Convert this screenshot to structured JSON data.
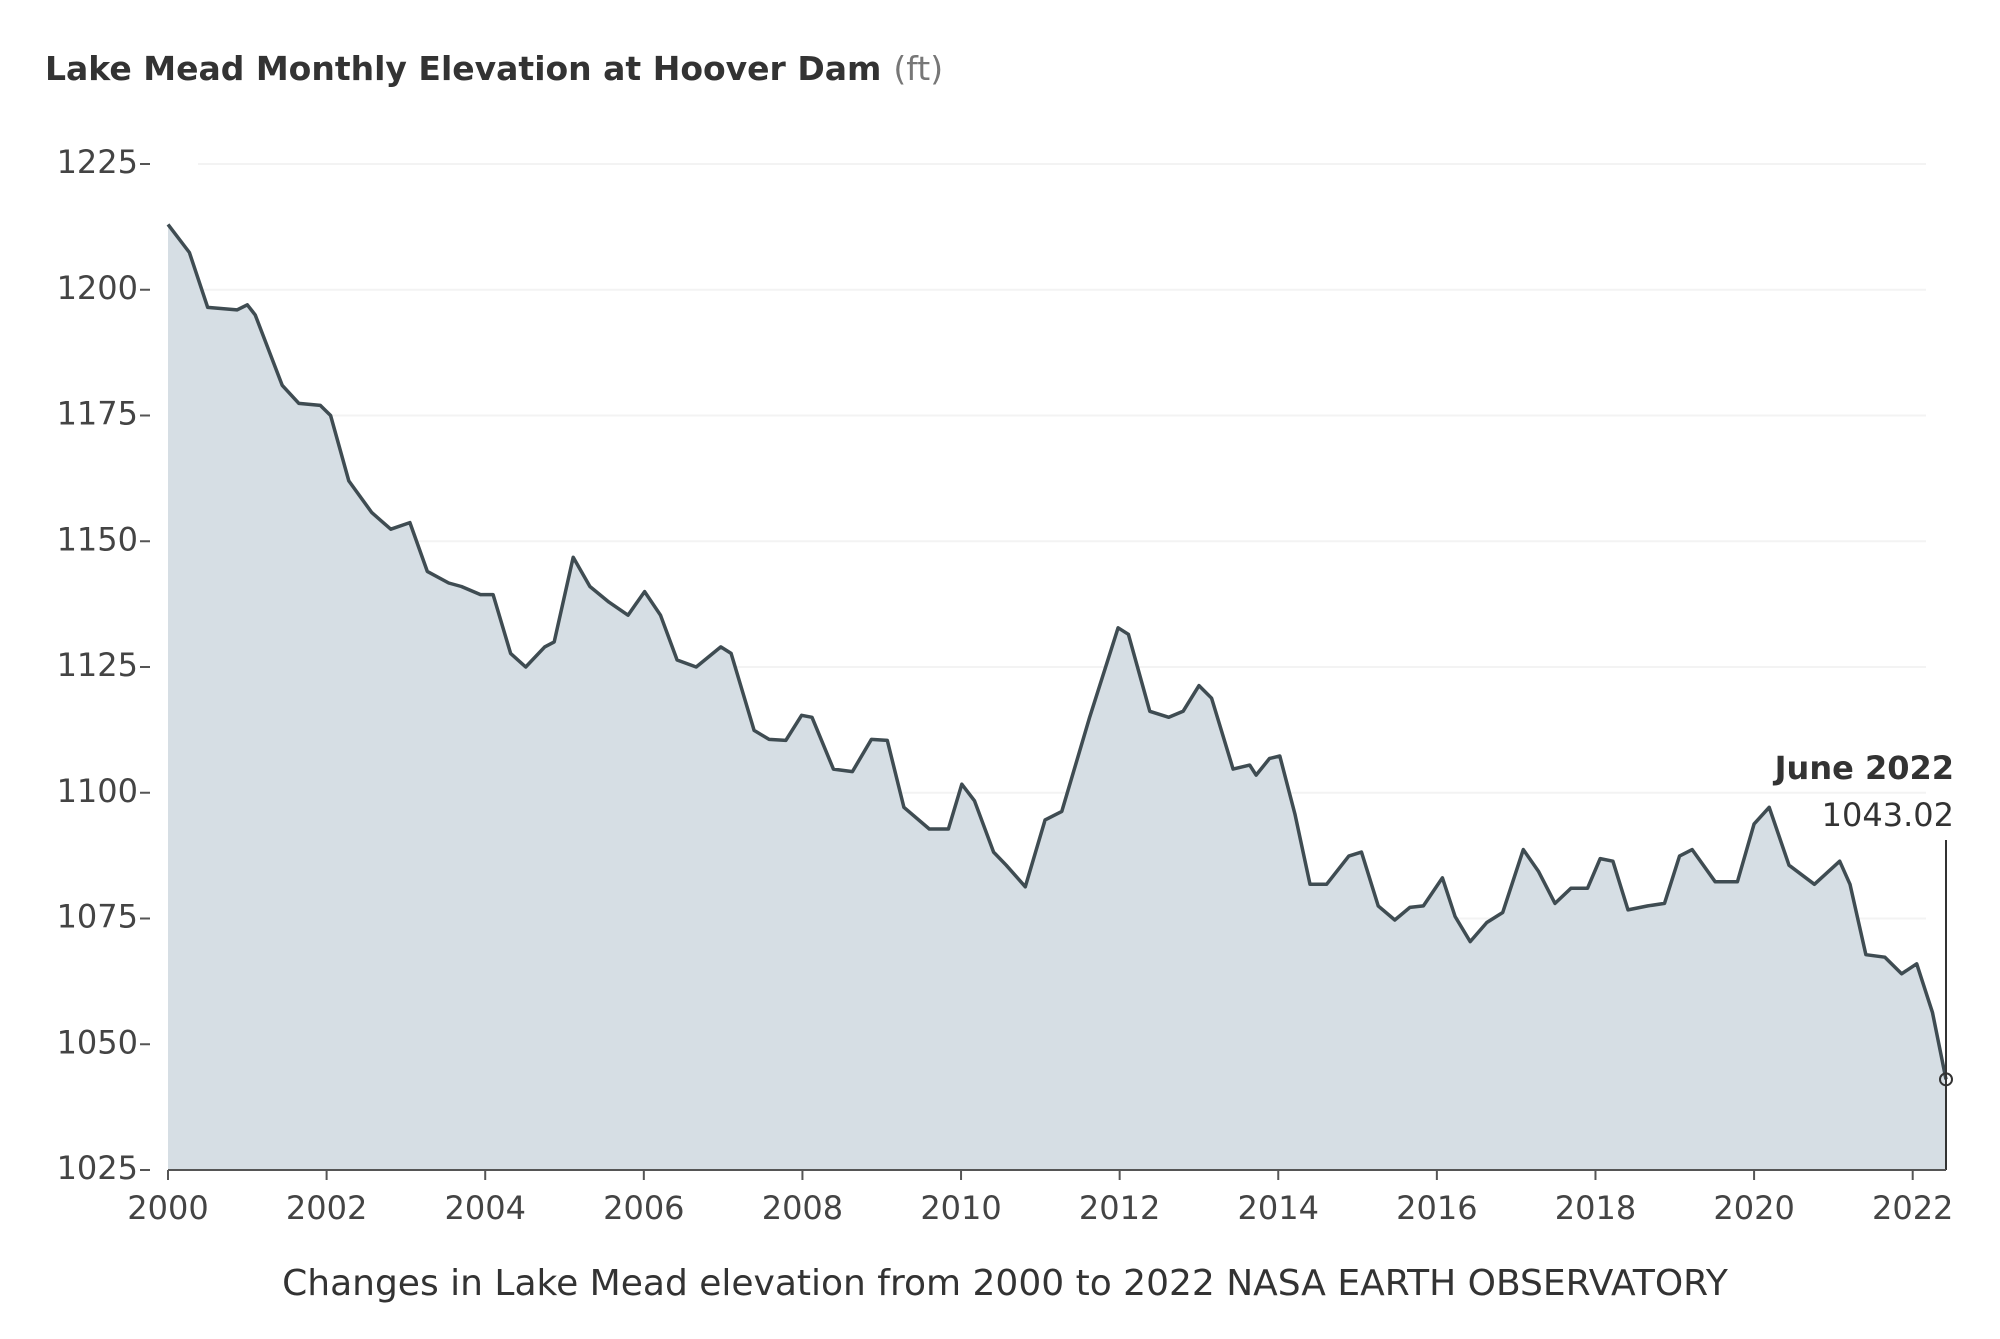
{
  "chart_data": {
    "type": "area",
    "title": "Lake Mead Monthly Elevation at Hoover Dam",
    "unit": "(ft)",
    "caption": "Changes in Lake Mead elevation from 2000 to 2022 NASA EARTH OBSERVATORY",
    "annotation": "June 2022",
    "color": "#3f4c52",
    "fill": "#d6dee4",
    "grid": true,
    "xlim": [
      2000,
      2022.42
    ],
    "xticks": [
      2000,
      2002,
      2004,
      2006,
      2008,
      2010,
      2012,
      2014,
      2016,
      2018,
      2020,
      2022
    ],
    "ylim": [
      1025,
      1225
    ],
    "yticks": [
      1025,
      1050,
      1075,
      1100,
      1125,
      1150,
      1175,
      1200,
      1225
    ],
    "x": [
      2000.0,
      2000.27,
      2000.5,
      2000.87,
      2001.0,
      2001.1,
      2001.44,
      2001.65,
      2001.92,
      2002.05,
      2002.28,
      2002.57,
      2002.81,
      2003.05,
      2003.27,
      2003.54,
      2003.7,
      2003.94,
      2004.1,
      2004.32,
      2004.51,
      2004.75,
      2004.87,
      2005.11,
      2005.32,
      2005.56,
      2005.8,
      2006.01,
      2006.21,
      2006.42,
      2006.66,
      2006.97,
      2007.1,
      2007.39,
      2007.58,
      2007.79,
      2007.99,
      2008.12,
      2008.39,
      2008.63,
      2008.87,
      2009.07,
      2009.28,
      2009.6,
      2009.84,
      2010.01,
      2010.17,
      2010.41,
      2010.57,
      2010.81,
      2011.06,
      2011.27,
      2011.62,
      2011.98,
      2012.11,
      2012.38,
      2012.62,
      2012.8,
      2013.0,
      2013.16,
      2013.43,
      2013.64,
      2013.72,
      2013.89,
      2014.02,
      2014.21,
      2014.4,
      2014.61,
      2014.89,
      2015.05,
      2015.26,
      2015.47,
      2015.66,
      2015.83,
      2016.07,
      2016.23,
      2016.42,
      2016.63,
      2016.83,
      2017.09,
      2017.28,
      2017.49,
      2017.69,
      2017.9,
      2018.06,
      2018.22,
      2018.41,
      2018.66,
      2018.87,
      2019.06,
      2019.22,
      2019.51,
      2019.79,
      2020.0,
      2020.19,
      2020.44,
      2020.76,
      2021.08,
      2021.21,
      2021.41,
      2021.65,
      2021.86,
      2022.05,
      2022.25,
      2022.42
    ],
    "values": [
      1213,
      1207.4,
      1196.5,
      1196,
      1197,
      1195,
      1181,
      1177.4,
      1177,
      1175,
      1162,
      1155.7,
      1152.4,
      1153.7,
      1144,
      1141.7,
      1141,
      1139.4,
      1139.4,
      1127.7,
      1125,
      1129,
      1130,
      1146.8,
      1141,
      1137.9,
      1135.3,
      1140,
      1135.3,
      1126.4,
      1125,
      1129,
      1127.7,
      1112.4,
      1110.6,
      1110.4,
      1115.4,
      1115,
      1104.7,
      1104.2,
      1110.6,
      1110.4,
      1097.1,
      1092.8,
      1092.8,
      1101.7,
      1098.4,
      1088.2,
      1085.6,
      1081.3,
      1094.6,
      1096.3,
      1114.9,
      1132.8,
      1131.5,
      1116.2,
      1115,
      1116.2,
      1121.3,
      1118.8,
      1104.7,
      1105.5,
      1103.5,
      1106.8,
      1107.3,
      1095.8,
      1081.8,
      1081.8,
      1087.4,
      1088.2,
      1077.5,
      1074.7,
      1077.2,
      1077.5,
      1083.1,
      1075.4,
      1070.4,
      1074.2,
      1076.2,
      1088.7,
      1084.4,
      1078,
      1081,
      1081,
      1086.9,
      1086.4,
      1076.7,
      1077.5,
      1078,
      1087.4,
      1088.7,
      1082.3,
      1082.3,
      1093.8,
      1097.1,
      1085.6,
      1081.8,
      1086.4,
      1081.8,
      1067.8,
      1067.3,
      1064,
      1066,
      1056.3,
      1043.02
    ]
  }
}
